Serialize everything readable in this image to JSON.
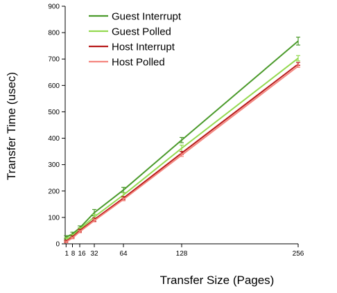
{
  "chart_data": {
    "type": "line",
    "xlabel": "Transfer Size (Pages)",
    "ylabel": "Transfer Time (usec)",
    "xlim": [
      0,
      256
    ],
    "ylim": [
      0,
      900
    ],
    "x_ticks": [
      1,
      8,
      16,
      32,
      64,
      128,
      256
    ],
    "x_tick_labels": [
      "1",
      "8",
      "16",
      "32",
      "64",
      "128",
      "256"
    ],
    "y_ticks": [
      0,
      100,
      200,
      300,
      400,
      500,
      600,
      700,
      800,
      900
    ],
    "y_tick_labels": [
      "0",
      "100",
      "200",
      "300",
      "400",
      "500",
      "600",
      "700",
      "800",
      "900"
    ],
    "grid": false,
    "legend_position": "top-left",
    "x": [
      1,
      8,
      16,
      32,
      64,
      128,
      256
    ],
    "series": [
      {
        "name": "Guest Interrupt",
        "color": "#4a9a2a",
        "values": [
          25,
          38,
          60,
          118,
          204,
          393,
          768
        ],
        "errors": [
          6,
          6,
          8,
          12,
          10,
          10,
          15
        ]
      },
      {
        "name": "Guest Polled",
        "color": "#93d94f",
        "values": [
          18,
          30,
          55,
          102,
          185,
          362,
          703
        ],
        "errors": [
          5,
          5,
          6,
          10,
          8,
          12,
          10
        ]
      },
      {
        "name": "Host Interrupt",
        "color": "#b81a1a",
        "values": [
          10,
          26,
          50,
          92,
          173,
          344,
          681
        ],
        "errors": [
          4,
          4,
          5,
          6,
          6,
          6,
          6
        ]
      },
      {
        "name": "Host Polled",
        "color": "#f4857e",
        "values": [
          7,
          22,
          46,
          88,
          168,
          336,
          673
        ],
        "errors": [
          3,
          3,
          4,
          5,
          5,
          5,
          5
        ]
      }
    ]
  }
}
